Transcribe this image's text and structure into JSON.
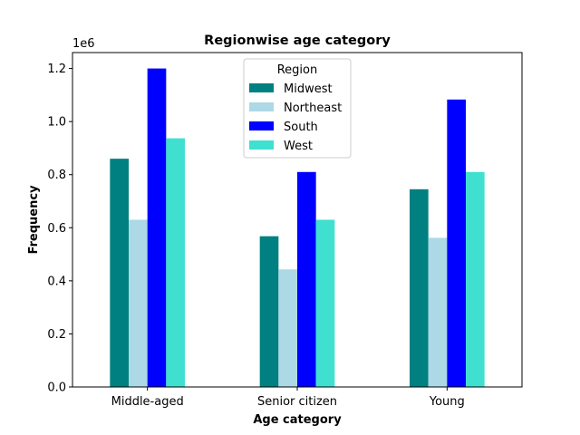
{
  "chart_data": {
    "type": "bar",
    "title": "Regionwise age category",
    "xlabel": "Age category",
    "ylabel": "Frequency",
    "categories": [
      "Middle-aged",
      "Senior citizen",
      "Young"
    ],
    "series": [
      {
        "name": "Midwest",
        "color": "#008080",
        "values": [
          860000,
          568000,
          745000
        ]
      },
      {
        "name": "Northeast",
        "color": "#add8e6",
        "values": [
          630000,
          443000,
          562000
        ]
      },
      {
        "name": "South",
        "color": "#0000ff",
        "values": [
          1200000,
          810000,
          1083000
        ]
      },
      {
        "name": "West",
        "color": "#40e0d0",
        "values": [
          937000,
          630000,
          810000
        ]
      }
    ],
    "ylim": [
      0,
      1260000
    ],
    "yticks": [
      0,
      200000,
      400000,
      600000,
      800000,
      1000000,
      1200000
    ],
    "ytick_labels": [
      "0.0",
      "0.2",
      "0.4",
      "0.6",
      "0.8",
      "1.0",
      "1.2"
    ],
    "y_scale_label": "1e6",
    "legend": {
      "title": "Region",
      "placement": "top-center"
    },
    "grid": false
  }
}
